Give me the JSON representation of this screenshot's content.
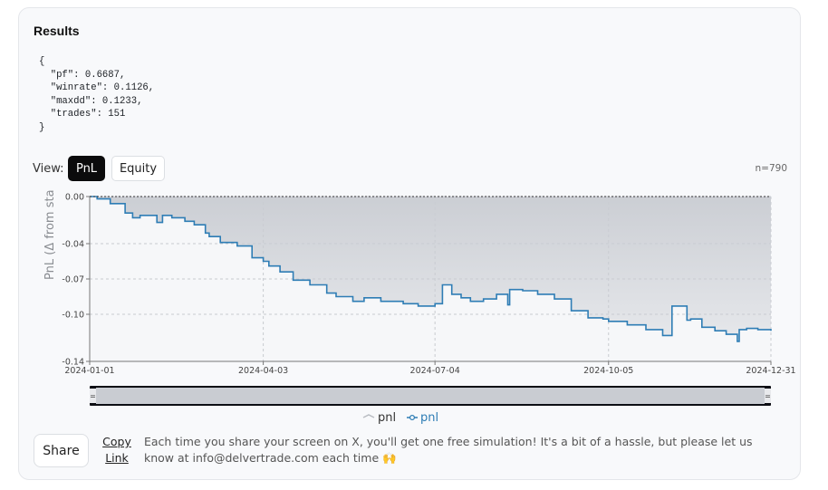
{
  "results": {
    "title": "Results",
    "json_text": "{\n  \"pf\": 0.6687,\n  \"winrate\": 0.1126,\n  \"maxdd\": 0.1233,\n  \"trades\": 151\n}"
  },
  "view": {
    "label": "View:",
    "options": [
      "PnL",
      "Equity"
    ],
    "selected": "PnL",
    "count_label": "n=790"
  },
  "chart_data": {
    "type": "line",
    "ylabel": "PnL (Δ from sta",
    "xlabel": "",
    "x_ticks": [
      "2024-01-01",
      "2024-04-03",
      "2024-07-04",
      "2024-10-05",
      "2024-12-31"
    ],
    "y_ticks": [
      "0.00",
      "-0.04",
      "-0.07",
      "-0.10",
      "-0.14"
    ],
    "ylim": [
      -0.14,
      0.0
    ],
    "xlim": [
      "2024-01-01",
      "2024-12-31"
    ],
    "grid": true,
    "legend_position": "bottom",
    "legend": [
      "pnl",
      "pnl"
    ],
    "colors": {
      "line": "#2e7db5",
      "area": "#c9ccd2",
      "slider": "#c9ccd2"
    },
    "series": [
      {
        "name": "pnl",
        "x": [
          "2024-01-01",
          "2024-01-05",
          "2024-01-12",
          "2024-01-20",
          "2024-01-24",
          "2024-01-28",
          "2024-02-06",
          "2024-02-09",
          "2024-02-14",
          "2024-02-21",
          "2024-02-26",
          "2024-03-03",
          "2024-03-05",
          "2024-03-11",
          "2024-03-20",
          "2024-03-28",
          "2024-04-03",
          "2024-04-06",
          "2024-04-12",
          "2024-04-19",
          "2024-04-28",
          "2024-05-07",
          "2024-05-12",
          "2024-05-21",
          "2024-05-27",
          "2024-06-05",
          "2024-06-17",
          "2024-06-25",
          "2024-07-04",
          "2024-07-08",
          "2024-07-13",
          "2024-07-18",
          "2024-07-23",
          "2024-07-30",
          "2024-08-06",
          "2024-08-12",
          "2024-08-13",
          "2024-08-20",
          "2024-08-28",
          "2024-09-06",
          "2024-09-15",
          "2024-09-24",
          "2024-10-02",
          "2024-10-05",
          "2024-10-15",
          "2024-10-25",
          "2024-11-03",
          "2024-11-08",
          "2024-11-16",
          "2024-11-18",
          "2024-11-24",
          "2024-12-01",
          "2024-12-07",
          "2024-12-13",
          "2024-12-14",
          "2024-12-18",
          "2024-12-24",
          "2024-12-31"
        ],
        "values": [
          0.0,
          -0.002,
          -0.006,
          -0.014,
          -0.018,
          -0.016,
          -0.022,
          -0.016,
          -0.018,
          -0.021,
          -0.024,
          -0.031,
          -0.034,
          -0.039,
          -0.042,
          -0.052,
          -0.055,
          -0.059,
          -0.064,
          -0.071,
          -0.075,
          -0.082,
          -0.085,
          -0.089,
          -0.086,
          -0.089,
          -0.091,
          -0.093,
          -0.091,
          -0.075,
          -0.083,
          -0.086,
          -0.089,
          -0.087,
          -0.083,
          -0.092,
          -0.079,
          -0.08,
          -0.083,
          -0.087,
          -0.097,
          -0.103,
          -0.104,
          -0.106,
          -0.109,
          -0.113,
          -0.118,
          -0.093,
          -0.105,
          -0.104,
          -0.111,
          -0.114,
          -0.117,
          -0.123,
          -0.113,
          -0.112,
          -0.113,
          -0.114
        ]
      }
    ]
  },
  "footer": {
    "share_label": "Share",
    "copy_link_label": "Copy Link",
    "notice": "Each time you share your screen on X, you'll get one free simulation! It's a bit of a hassle, but please let us know at info@delvertrade.com each time 🙌"
  }
}
